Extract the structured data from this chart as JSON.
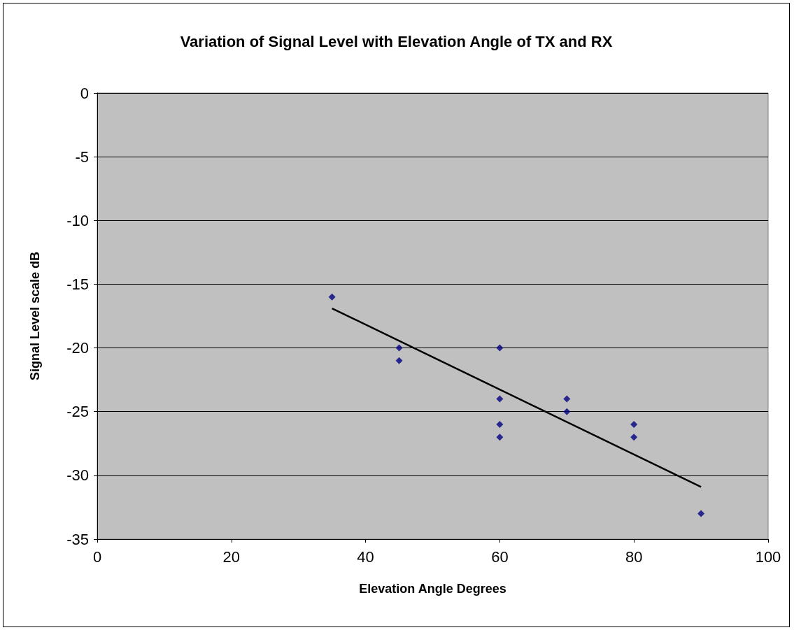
{
  "chart_data": {
    "type": "scatter",
    "title": "Variation of Signal Level with Elevation Angle of TX and RX",
    "xlabel": "Elevation Angle Degrees",
    "ylabel": "Signal Level scale dB",
    "xlim": [
      0,
      100
    ],
    "xticks": [
      0,
      20,
      40,
      60,
      80,
      100
    ],
    "ylim": [
      -35,
      0
    ],
    "yticks": [
      -35,
      -30,
      -25,
      -20,
      -15,
      -10,
      -5,
      0
    ],
    "grid": "y",
    "series": [
      {
        "marker": "diamond",
        "color": "#000080",
        "x": [
          35,
          45,
          45,
          60,
          60,
          60,
          60,
          70,
          70,
          80,
          80,
          90
        ],
        "values": [
          -16,
          -20,
          -21,
          -20,
          -24,
          -26,
          -27,
          -24,
          -25,
          -26,
          -27,
          -33
        ]
      },
      {
        "type": "line",
        "marker": "none",
        "line_style": "solid",
        "color": "#000000",
        "x": [
          35,
          90
        ],
        "values": [
          -16.9,
          -30.9
        ]
      }
    ]
  }
}
